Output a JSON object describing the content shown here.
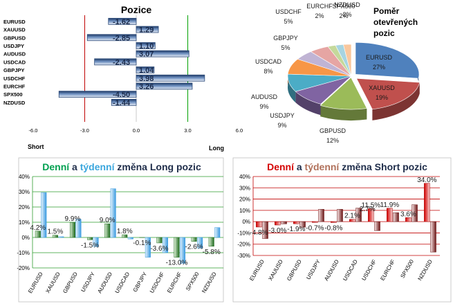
{
  "chart_data": [
    {
      "type": "bar",
      "orientation": "horizontal",
      "title": "Pozice",
      "categories": [
        "EURUSD",
        "XAUUSD",
        "GBPUSD",
        "USDJPY",
        "AUDUSD",
        "USDCAD",
        "GBPJPY",
        "USDCHF",
        "EURCHF",
        "SPX500",
        "NZDUSD"
      ],
      "values": [
        -1.62,
        1.29,
        -2.85,
        1.1,
        3.07,
        -2.43,
        1.04,
        3.98,
        3.26,
        -4.5,
        -1.44
      ],
      "value_labels": [
        "-1.62",
        "1.29",
        "-2.85",
        "1.10",
        "3.07",
        "-2.43",
        "1.04",
        "3.98",
        "3.26",
        "-4.50",
        "-1.44"
      ],
      "xlim": [
        -6,
        6
      ],
      "ticks": [
        "-6.0",
        "-3.0",
        "0.0",
        "3.0",
        "6.0"
      ],
      "side_labels": {
        "left": "Short",
        "right": "Long"
      },
      "colors": {
        "bar": "#4a6fa5",
        "bar_light": "#dbe6f3",
        "short_line": "#c00000",
        "long_line": "#00a000"
      }
    },
    {
      "type": "pie",
      "title": "Poměr otevřených pozic",
      "slices": [
        {
          "label": "EURUSD",
          "pct": "27%",
          "value": 27,
          "color": "#4f81bd"
        },
        {
          "label": "XAUUSD",
          "pct": "19%",
          "value": 19,
          "color": "#c0504d"
        },
        {
          "label": "GBPUSD",
          "pct": "12%",
          "value": 12,
          "color": "#9bbb59"
        },
        {
          "label": "USDJPY",
          "pct": "9%",
          "value": 9,
          "color": "#8064a2"
        },
        {
          "label": "AUDUSD",
          "pct": "9%",
          "value": 9,
          "color": "#4bacc6"
        },
        {
          "label": "USDCAD",
          "pct": "8%",
          "value": 8,
          "color": "#f79646"
        },
        {
          "label": "GBPJPY",
          "pct": "5%",
          "value": 5,
          "color": "#c0b4d4"
        },
        {
          "label": "USDCHF",
          "pct": "5%",
          "value": 5,
          "color": "#e6a5a3"
        },
        {
          "label": "EURCHF",
          "pct": "2%",
          "value": 2,
          "color": "#c5d99b"
        },
        {
          "label": "SPX500",
          "pct": "2%",
          "value": 2,
          "color": "#a6d4e1"
        },
        {
          "label": "NZDUSD",
          "pct": "2%",
          "value": 2,
          "color": "#f9c79d"
        }
      ]
    },
    {
      "type": "bar",
      "title_parts": [
        {
          "text": "Denní",
          "color": "#00a050"
        },
        {
          "text": " a ",
          "color": "#1f2d4a"
        },
        {
          "text": "týdenní",
          "color": "#3aa6dd"
        },
        {
          "text": " změna Long pozic",
          "color": "#1f2d4a"
        }
      ],
      "categories": [
        "EURUSD",
        "XAUUSD",
        "GBPUSD",
        "USDJPY",
        "AUDUSD",
        "USDCAD",
        "GBPJPY",
        "USDCHF",
        "EURCHF",
        "SPX500",
        "NZDUSD"
      ],
      "series": [
        {
          "name": "Denní",
          "values": [
            4.2,
            1.5,
            9.9,
            -1.5,
            9.0,
            1.8,
            -0.1,
            -3.6,
            -13.0,
            -2.6,
            -5.8
          ]
        },
        {
          "name": "týdenní",
          "values": [
            29.5,
            0.5,
            12.0,
            -6.0,
            32.0,
            -1.0,
            -13.0,
            -10.0,
            -17.0,
            -7.0,
            6.5
          ]
        }
      ],
      "data_labels": [
        "4.2%",
        "1.5%",
        "9.9%",
        "-1.5%",
        "9.0%",
        "1.8%",
        "-0.1%",
        "-3.6%",
        "-13.0%",
        "-2.6%",
        "-5.8%"
      ],
      "ylim": [
        -20,
        40
      ],
      "yticks": [
        "40%",
        "30%",
        "20%",
        "10%",
        "0%",
        "-10%",
        "-20%"
      ],
      "colors": {
        "daily": "#2e7d32",
        "weekly": "#64b5f6",
        "grid": "#2e9c2e"
      }
    },
    {
      "type": "bar",
      "title_parts": [
        {
          "text": "Denní",
          "color": "#d40000"
        },
        {
          "text": " a ",
          "color": "#1f2d4a"
        },
        {
          "text": "týdenní",
          "color": "#b0705a"
        },
        {
          "text": " změna Short pozic",
          "color": "#1f2d4a"
        }
      ],
      "categories": [
        "EURUSD",
        "XAUUSD",
        "GBPUSD",
        "USDJPY",
        "AUDUSD",
        "USDCAD",
        "USDCHF",
        "EURCHF",
        "SPX500",
        "NZDUSD"
      ],
      "series": [
        {
          "name": "Denní",
          "values": [
            -4.8,
            -3.0,
            -1.9,
            -0.7,
            -0.8,
            2.1,
            11.5,
            11.9,
            3.6,
            34.0
          ]
        },
        {
          "name": "týdenní",
          "values": [
            -15.0,
            -2.0,
            -5.0,
            11.0,
            11.0,
            12.0,
            -8.0,
            8.0,
            15.0,
            -27.0
          ]
        }
      ],
      "data_labels": [
        "-4.8%",
        "-3.0%",
        "-1.9%",
        "-0.7%",
        "-0.8%",
        "2.1%",
        "11.5%",
        "11.9%",
        "3.6%",
        "34.0%"
      ],
      "extra_labels": [
        "2.7%"
      ],
      "ylim": [
        -30,
        40
      ],
      "yticks": [
        "40%",
        "30%",
        "20%",
        "10%",
        "0%",
        "-10%",
        "-20%",
        "-30%"
      ],
      "colors": {
        "daily": "#c00000",
        "weekly": "#7a1a1a",
        "grid": "#c00000"
      }
    }
  ]
}
